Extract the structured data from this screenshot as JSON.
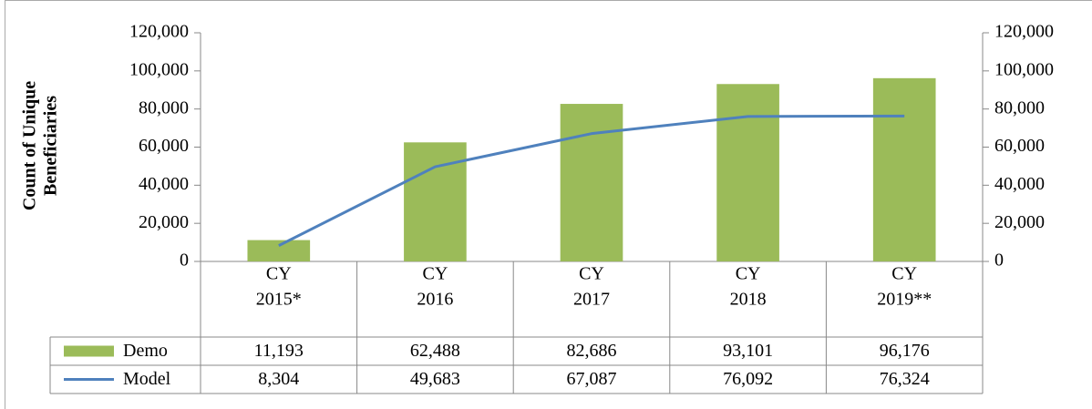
{
  "chart_data": {
    "type": "bar",
    "y_label": [
      "Count of Unique",
      "Beneficiaries"
    ],
    "categories": [
      [
        "CY",
        "2015*"
      ],
      [
        "CY",
        "2016"
      ],
      [
        "CY",
        "2017"
      ],
      [
        "CY",
        "2018"
      ],
      [
        "CY",
        "2019**"
      ]
    ],
    "series": [
      {
        "name": "Demo",
        "type": "bar",
        "color": "#9bbb59",
        "values": [
          11193,
          62488,
          82686,
          93101,
          96176
        ],
        "value_labels": [
          "11,193",
          "62,488",
          "82,686",
          "93,101",
          "96,176"
        ]
      },
      {
        "name": "Model",
        "type": "line",
        "axis": "y2",
        "color": "#4f81bd",
        "values": [
          8304,
          49683,
          67087,
          76092,
          76324
        ],
        "value_labels": [
          "8,304",
          "49,683",
          "67,087",
          "76,092",
          "76,324"
        ]
      }
    ],
    "ylim": [
      0,
      120000
    ],
    "yticks": [
      0,
      {
        "value": 20000,
        "label": "20,000"
      },
      {
        "value": 40000,
        "label": "40,000"
      },
      {
        "value": 60000,
        "label": "60,000"
      },
      {
        "value": 80000,
        "label": "80,000"
      },
      {
        "value": 100000,
        "label": "100,000"
      },
      {
        "value": 120000,
        "label": "120,000"
      }
    ],
    "y2lim": [
      0,
      120000
    ],
    "y2ticks": [
      0,
      {
        "value": 20000,
        "label": "20,000"
      },
      {
        "value": 40000,
        "label": "40,000"
      },
      {
        "value": 60000,
        "label": "60,000"
      },
      {
        "value": 80000,
        "label": "80,000"
      },
      {
        "value": 100000,
        "label": "100,000"
      },
      {
        "value": 120000,
        "label": "120,000"
      }
    ],
    "grid": false
  }
}
